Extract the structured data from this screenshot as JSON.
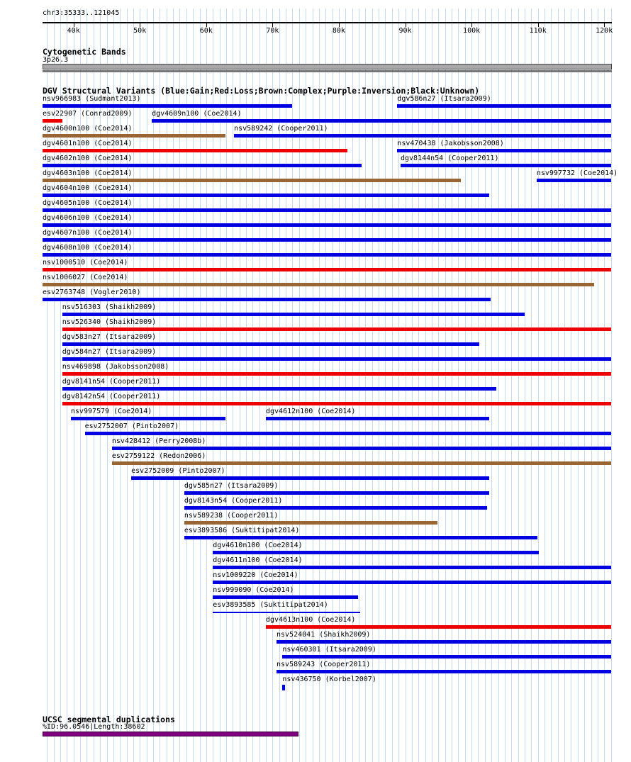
{
  "region": "chr3:35333..121045",
  "colors": {
    "gain": "#0000e0",
    "loss": "#ee0000",
    "complex": "#996633",
    "inversion": "#800080",
    "unknown": "#000000",
    "grid": "#c3daf0",
    "segdup": "#800080",
    "cytoband": "#a9a9a9"
  },
  "chart_data": {
    "type": "bar",
    "subtype": "genome-browser-interval-tracks",
    "axis": {
      "start": 35333,
      "end": 121045,
      "tick_positions": [
        40000,
        50000,
        60000,
        70000,
        80000,
        90000,
        100000,
        110000,
        120000
      ],
      "tick_labels": [
        "40k",
        "50k",
        "60k",
        "70k",
        "80k",
        "90k",
        "100k",
        "110k",
        "120k"
      ],
      "grid_interval": 1000
    },
    "cytogenetic": {
      "title": "Cytogenetic Bands",
      "band": "3p26.3"
    },
    "dgv": {
      "title": "DGV Structural Variants (Blue:Gain;Red:Loss;Brown:Complex;Purple:Inversion;Black:Unknown)",
      "legend": {
        "Blue": "Gain",
        "Red": "Loss",
        "Brown": "Complex",
        "Purple": "Inversion",
        "Black": "Unknown"
      },
      "rows": [
        [
          {
            "label": "nsv966983 (Sudmant2013)",
            "variant_type": "gain",
            "start": 35333,
            "end": 73000
          },
          {
            "label": "dgv586n27 (Itsara2009)",
            "variant_type": "gain",
            "start": 88800,
            "end": 121045
          }
        ],
        [
          {
            "label": "esv22907 (Conrad2009)",
            "variant_type": "loss",
            "start": 35333,
            "end": 38300
          },
          {
            "label": "dgv4609n100 (Coe2014)",
            "variant_type": "gain",
            "start": 51800,
            "end": 121045
          }
        ],
        [
          {
            "label": "dgv4600n100 (Coe2014)",
            "variant_type": "complex",
            "start": 35333,
            "end": 62900
          },
          {
            "label": "nsv589242 (Cooper2011)",
            "variant_type": "gain",
            "start": 64200,
            "end": 121045
          }
        ],
        [
          {
            "label": "dgv4601n100 (Coe2014)",
            "variant_type": "loss",
            "start": 35333,
            "end": 81300
          },
          {
            "label": "nsv470438 (Jakobsson2008)",
            "variant_type": "gain",
            "start": 88800,
            "end": 121045
          }
        ],
        [
          {
            "label": "dgv4602n100 (Coe2014)",
            "variant_type": "gain",
            "start": 35333,
            "end": 83400
          },
          {
            "label": "dgv8144n54 (Cooper2011)",
            "variant_type": "gain",
            "start": 89300,
            "end": 121045
          }
        ],
        [
          {
            "label": "dgv4603n100 (Coe2014)",
            "variant_type": "complex",
            "start": 35333,
            "end": 98400
          },
          {
            "label": "nsv997732 (Coe2014)",
            "variant_type": "gain",
            "start": 109800,
            "end": 121045
          }
        ],
        [
          {
            "label": "dgv4604n100 (Coe2014)",
            "variant_type": "gain",
            "start": 35333,
            "end": 102700
          }
        ],
        [
          {
            "label": "dgv4605n100 (Coe2014)",
            "variant_type": "gain",
            "start": 35333,
            "end": 121045
          }
        ],
        [
          {
            "label": "dgv4606n100 (Coe2014)",
            "variant_type": "gain",
            "start": 35333,
            "end": 121045
          }
        ],
        [
          {
            "label": "dgv4607n100 (Coe2014)",
            "variant_type": "gain",
            "start": 35333,
            "end": 121045
          }
        ],
        [
          {
            "label": "dgv4608n100 (Coe2014)",
            "variant_type": "gain",
            "start": 35333,
            "end": 121045
          }
        ],
        [
          {
            "label": "nsv1000510 (Coe2014)",
            "variant_type": "loss",
            "start": 35333,
            "end": 121045
          }
        ],
        [
          {
            "label": "nsv1006027 (Coe2014)",
            "variant_type": "complex",
            "start": 35333,
            "end": 118500
          }
        ],
        [
          {
            "label": "esv2763748 (Vogler2010)",
            "variant_type": "gain",
            "start": 35333,
            "end": 102900
          }
        ],
        [
          {
            "label": "nsv516303 (Shaikh2009)",
            "variant_type": "gain",
            "start": 38300,
            "end": 108000
          }
        ],
        [
          {
            "label": "nsv526340 (Shaikh2009)",
            "variant_type": "loss",
            "start": 38300,
            "end": 121045
          }
        ],
        [
          {
            "label": "dgv583n27 (Itsara2009)",
            "variant_type": "gain",
            "start": 38300,
            "end": 101200
          }
        ],
        [
          {
            "label": "dgv584n27 (Itsara2009)",
            "variant_type": "gain",
            "start": 38300,
            "end": 121045
          }
        ],
        [
          {
            "label": "nsv469898 (Jakobsson2008)",
            "variant_type": "loss",
            "start": 38300,
            "end": 121045
          }
        ],
        [
          {
            "label": "dgv8141n54 (Cooper2011)",
            "variant_type": "gain",
            "start": 38300,
            "end": 103700
          }
        ],
        [
          {
            "label": "dgv8142n54 (Cooper2011)",
            "variant_type": "loss",
            "start": 38300,
            "end": 121045
          }
        ],
        [
          {
            "label": "nsv997579 (Coe2014)",
            "variant_type": "gain",
            "start": 39600,
            "end": 62900
          },
          {
            "label": "dgv4612n100 (Coe2014)",
            "variant_type": "gain",
            "start": 69000,
            "end": 102700
          }
        ],
        [
          {
            "label": "esv2752007 (Pinto2007)",
            "variant_type": "gain",
            "start": 41700,
            "end": 121045
          }
        ],
        [
          {
            "label": "nsv428412 (Perry2008b)",
            "variant_type": "gain",
            "start": 45800,
            "end": 121045
          }
        ],
        [
          {
            "label": "esv2759122 (Redon2006)",
            "variant_type": "complex",
            "start": 45800,
            "end": 121045
          }
        ],
        [
          {
            "label": "esv2752009 (Pinto2007)",
            "variant_type": "gain",
            "start": 48700,
            "end": 102700
          }
        ],
        [
          {
            "label": "dgv585n27 (Itsara2009)",
            "variant_type": "gain",
            "start": 56700,
            "end": 102700
          }
        ],
        [
          {
            "label": "dgv8143n54 (Cooper2011)",
            "variant_type": "gain",
            "start": 56700,
            "end": 102400
          }
        ],
        [
          {
            "label": "nsv589238 (Cooper2011)",
            "variant_type": "complex",
            "start": 56700,
            "end": 94900
          }
        ],
        [
          {
            "label": "esv3893586 (Suktitipat2014)",
            "variant_type": "gain",
            "start": 56700,
            "end": 109900
          }
        ],
        [
          {
            "label": "dgv4610n100 (Coe2014)",
            "variant_type": "gain",
            "start": 61000,
            "end": 110100
          }
        ],
        [
          {
            "label": "dgv4611n100 (Coe2014)",
            "variant_type": "gain",
            "start": 61000,
            "end": 121045
          }
        ],
        [
          {
            "label": "nsv1009220 (Coe2014)",
            "variant_type": "gain",
            "start": 61000,
            "end": 121045
          }
        ],
        [
          {
            "label": "nsv999090 (Coe2014)",
            "variant_type": "gain",
            "start": 61000,
            "end": 82900
          }
        ],
        [
          {
            "label": "esv3893585 (Suktitipat2014)",
            "variant_type": "gain",
            "start": 61000,
            "end": 83200,
            "style": "thin"
          }
        ],
        [
          {
            "label": "dgv4613n100 (Coe2014)",
            "variant_type": "loss",
            "start": 69000,
            "end": 121045
          }
        ],
        [
          {
            "label": "nsv524041 (Shaikh2009)",
            "variant_type": "gain",
            "start": 70600,
            "end": 121045
          }
        ],
        [
          {
            "label": "nsv460301 (Itsara2009)",
            "variant_type": "gain",
            "start": 71500,
            "end": 121045
          }
        ],
        [
          {
            "label": "nsv589243 (Cooper2011)",
            "variant_type": "gain",
            "start": 70600,
            "end": 121045
          }
        ],
        [
          {
            "label": "nsv436750 (Korbel2007)",
            "variant_type": "gain",
            "start": 71500,
            "end": 72200,
            "style": "point"
          }
        ]
      ]
    },
    "segdup": {
      "title": "UCSC segmental duplications",
      "info": "%ID:96.0546|Length:38602",
      "start": 35333,
      "end": 73935
    }
  }
}
